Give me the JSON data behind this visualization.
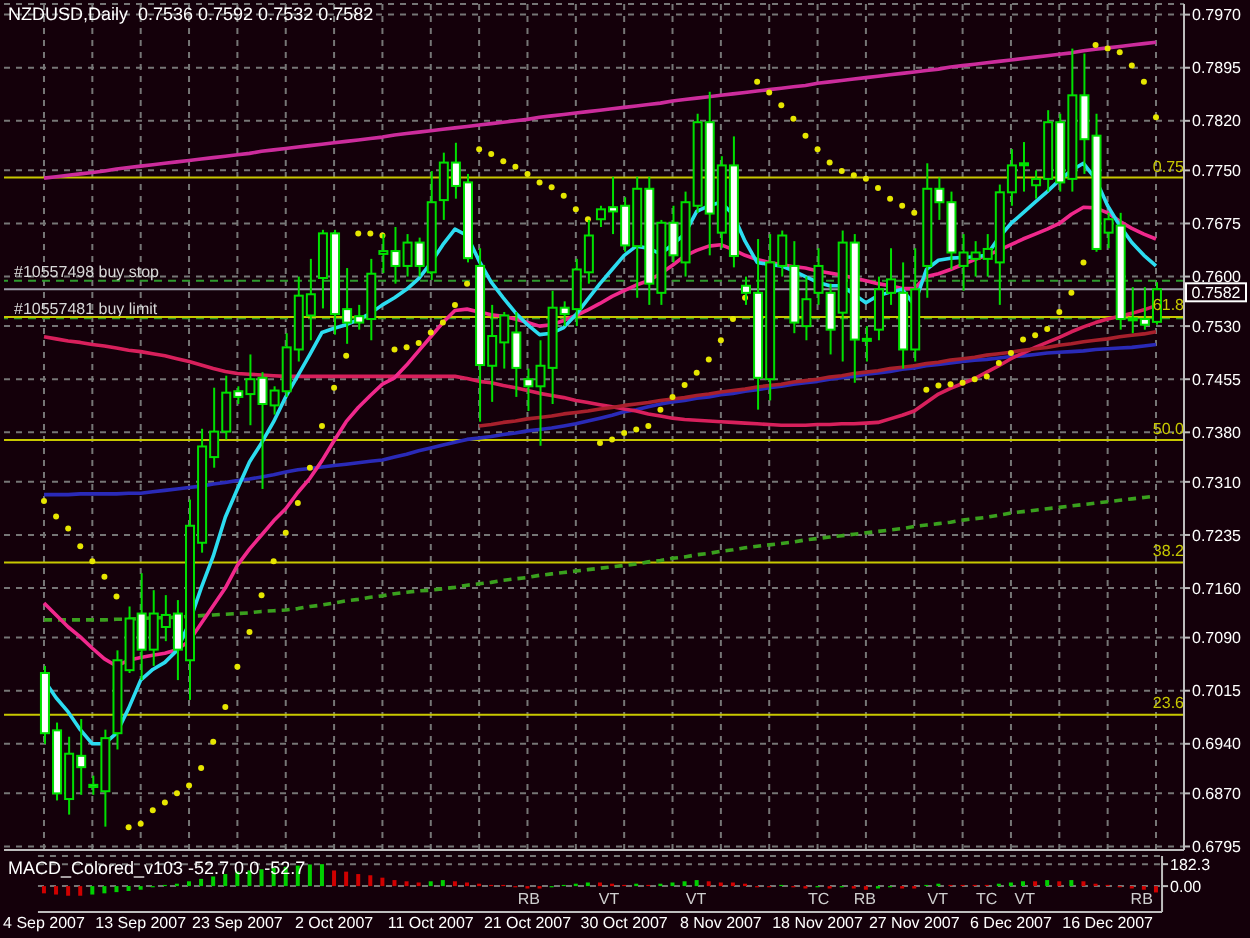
{
  "chart_data": [
    {
      "type": "candlestick",
      "title": "NZDUSD,Daily  0.7536 0.7592 0.7532 0.7582",
      "categories": [
        "4 Sep 2007",
        null,
        null,
        null,
        null,
        null,
        null,
        null,
        "13 Sep 2007",
        null,
        null,
        null,
        null,
        null,
        null,
        null,
        "23 Sep 2007",
        null,
        null,
        null,
        null,
        null,
        null,
        null,
        "2 Oct 2007",
        null,
        null,
        null,
        null,
        null,
        null,
        null,
        "11 Oct 2007",
        null,
        null,
        null,
        null,
        null,
        null,
        null,
        "21 Oct 2007",
        null,
        null,
        null,
        null,
        null,
        null,
        null,
        "30 Oct 2007",
        null,
        null,
        null,
        null,
        null,
        null,
        null,
        "8 Nov 2007",
        null,
        null,
        null,
        null,
        null,
        null,
        null,
        "18 Nov 2007",
        null,
        null,
        null,
        null,
        null,
        null,
        null,
        "27 Nov 2007",
        null,
        null,
        null,
        null,
        null,
        null,
        null,
        "6 Dec 2007",
        null,
        null,
        null,
        null,
        null,
        null,
        null,
        "16 Dec 2007",
        null,
        null,
        null,
        null
      ],
      "ohlc": [
        [
          0.704,
          0.705,
          0.694,
          0.6955
        ],
        [
          0.6959,
          0.697,
          0.686,
          0.687
        ],
        [
          0.6862,
          0.695,
          0.684,
          0.6926
        ],
        [
          0.6923,
          0.6975,
          0.6868,
          0.6907
        ],
        [
          0.6882,
          0.6895,
          0.6868,
          0.6879
        ],
        [
          0.6873,
          0.696,
          0.6823,
          0.6948
        ],
        [
          0.6955,
          0.7072,
          0.6932,
          0.7058
        ],
        [
          0.7044,
          0.7134,
          0.704,
          0.7117
        ],
        [
          0.7124,
          0.7181,
          0.703,
          0.7073
        ],
        [
          0.7073,
          0.7157,
          0.705,
          0.7124
        ],
        [
          0.7105,
          0.715,
          0.7085,
          0.7122
        ],
        [
          0.7124,
          0.7143,
          0.703,
          0.7073
        ],
        [
          0.7058,
          0.7285,
          0.7002,
          0.7248
        ],
        [
          0.7224,
          0.7385,
          0.721,
          0.736
        ],
        [
          0.7345,
          0.7443,
          0.733,
          0.7381
        ],
        [
          0.7381,
          0.746,
          0.737,
          0.7436
        ],
        [
          0.7438,
          0.7445,
          0.742,
          0.743
        ],
        [
          0.7434,
          0.749,
          0.739,
          0.7455
        ],
        [
          0.7457,
          0.7465,
          0.73,
          0.742
        ],
        [
          0.7418,
          0.7445,
          0.7405,
          0.7439
        ],
        [
          0.7438,
          0.752,
          0.743,
          0.75
        ],
        [
          0.7497,
          0.76,
          0.748,
          0.7573
        ],
        [
          0.7545,
          0.7625,
          0.751,
          0.7575
        ],
        [
          0.7598,
          0.7666,
          0.7555,
          0.7661
        ],
        [
          0.7661,
          0.7666,
          0.7518,
          0.7547
        ],
        [
          0.7554,
          0.7612,
          0.7505,
          0.7535
        ],
        [
          0.7544,
          0.756,
          0.7525,
          0.7535
        ],
        [
          0.754,
          0.7625,
          0.751,
          0.7604
        ],
        [
          0.7632,
          0.766,
          0.7605,
          0.7636
        ],
        [
          0.7636,
          0.767,
          0.759,
          0.7615
        ],
        [
          0.7615,
          0.766,
          0.76,
          0.7648
        ],
        [
          0.7648,
          0.7655,
          0.76,
          0.7615
        ],
        [
          0.7606,
          0.7749,
          0.7595,
          0.7705
        ],
        [
          0.7708,
          0.7775,
          0.768,
          0.7761
        ],
        [
          0.7761,
          0.7789,
          0.771,
          0.7728
        ],
        [
          0.7733,
          0.7745,
          0.762,
          0.7626
        ],
        [
          0.7615,
          0.764,
          0.7395,
          0.7475
        ],
        [
          0.7474,
          0.756,
          0.7423,
          0.7516
        ],
        [
          0.7507,
          0.755,
          0.747,
          0.7545
        ],
        [
          0.7521,
          0.755,
          0.743,
          0.7471
        ],
        [
          0.7455,
          0.747,
          0.741,
          0.7445
        ],
        [
          0.7445,
          0.751,
          0.7361,
          0.7474
        ],
        [
          0.7471,
          0.758,
          0.742,
          0.7556
        ],
        [
          0.7556,
          0.7565,
          0.753,
          0.7547
        ],
        [
          0.7554,
          0.7625,
          0.753,
          0.761
        ],
        [
          0.7606,
          0.768,
          0.759,
          0.7658
        ],
        [
          0.7681,
          0.77,
          0.767,
          0.7695
        ],
        [
          0.7698,
          0.7741,
          0.766,
          0.7692
        ],
        [
          0.77,
          0.7712,
          0.7635,
          0.7644
        ],
        [
          0.7643,
          0.7741,
          0.757,
          0.7724
        ],
        [
          0.7724,
          0.7741,
          0.756,
          0.759
        ],
        [
          0.7577,
          0.768,
          0.756,
          0.7676
        ],
        [
          0.7676,
          0.77,
          0.762,
          0.763
        ],
        [
          0.762,
          0.772,
          0.76,
          0.7705
        ],
        [
          0.77,
          0.783,
          0.769,
          0.7818
        ],
        [
          0.7818,
          0.7861,
          0.763,
          0.7689
        ],
        [
          0.7662,
          0.777,
          0.764,
          0.7757
        ],
        [
          0.7757,
          0.7798,
          0.7613,
          0.7629
        ],
        [
          0.7587,
          0.76,
          0.756,
          0.7577
        ],
        [
          0.7577,
          0.7653,
          0.7412,
          0.7457
        ],
        [
          0.7455,
          0.766,
          0.7425,
          0.762
        ],
        [
          0.7615,
          0.7665,
          0.76,
          0.7658
        ],
        [
          0.7615,
          0.765,
          0.752,
          0.7535
        ],
        [
          0.753,
          0.76,
          0.751,
          0.7568
        ],
        [
          0.7577,
          0.764,
          0.756,
          0.7615
        ],
        [
          0.7577,
          0.759,
          0.749,
          0.7525
        ],
        [
          0.7549,
          0.7665,
          0.748,
          0.7648
        ],
        [
          0.7648,
          0.766,
          0.745,
          0.7511
        ],
        [
          0.7512,
          0.753,
          0.748,
          0.7511
        ],
        [
          0.7525,
          0.76,
          0.751,
          0.7582
        ],
        [
          0.7577,
          0.764,
          0.756,
          0.7596
        ],
        [
          0.7577,
          0.762,
          0.747,
          0.7497
        ],
        [
          0.7497,
          0.764,
          0.748,
          0.7582
        ],
        [
          0.7615,
          0.776,
          0.757,
          0.7724
        ],
        [
          0.7724,
          0.774,
          0.768,
          0.7705
        ],
        [
          0.7705,
          0.772,
          0.761,
          0.7634
        ],
        [
          0.7615,
          0.766,
          0.758,
          0.7634
        ],
        [
          0.7625,
          0.765,
          0.76,
          0.7634
        ],
        [
          0.7625,
          0.766,
          0.76,
          0.7639
        ],
        [
          0.762,
          0.773,
          0.756,
          0.7719
        ],
        [
          0.7719,
          0.778,
          0.77,
          0.7757
        ],
        [
          0.776,
          0.779,
          0.772,
          0.7759
        ],
        [
          0.7729,
          0.775,
          0.771,
          0.7738
        ],
        [
          0.7738,
          0.7835,
          0.772,
          0.7818
        ],
        [
          0.7818,
          0.783,
          0.772,
          0.7733
        ],
        [
          0.7738,
          0.7922,
          0.772,
          0.7856
        ],
        [
          0.7856,
          0.7915,
          0.7745,
          0.7794
        ],
        [
          0.7799,
          0.783,
          0.7635,
          0.7639
        ],
        [
          0.7662,
          0.769,
          0.764,
          0.7681
        ],
        [
          0.7672,
          0.769,
          0.7525,
          0.754
        ],
        [
          0.7541,
          0.7585,
          0.752,
          0.754
        ],
        [
          0.754,
          0.7585,
          0.7525,
          0.7532
        ],
        [
          0.7536,
          0.7592,
          0.7532,
          0.7582
        ]
      ],
      "series": [
        {
          "type": "line",
          "color": "#3aa01e",
          "line_style": "dashed",
          "values": [
            0.7115,
            0.7115,
            0.7115,
            0.7115,
            0.7115,
            0.7115,
            0.7116,
            0.7116,
            0.7117,
            0.7118,
            0.7118,
            0.7119,
            0.712,
            0.7121,
            0.7122,
            0.7123,
            0.7124,
            0.7125,
            0.7127,
            0.7128,
            0.7129,
            0.7131,
            0.7134,
            0.7136,
            0.7139,
            0.7142,
            0.7144,
            0.7147,
            0.7149,
            0.7152,
            0.7154,
            0.7156,
            0.7157,
            0.7159,
            0.7161,
            0.7164,
            0.7166,
            0.7168,
            0.7171,
            0.7173,
            0.7175,
            0.7178,
            0.718,
            0.7182,
            0.7184,
            0.7186,
            0.7188,
            0.719,
            0.7192,
            0.7194,
            0.7197,
            0.7199,
            0.7202,
            0.7204,
            0.7207,
            0.7209,
            0.7212,
            0.7214,
            0.7217,
            0.7219,
            0.7221,
            0.7223,
            0.7225,
            0.7228,
            0.723,
            0.7232,
            0.7234,
            0.7236,
            0.7238,
            0.724,
            0.7242,
            0.7244,
            0.7247,
            0.7249,
            0.7251,
            0.7253,
            0.7256,
            0.7258,
            0.726,
            0.7263,
            0.7266,
            0.7268,
            0.727,
            0.7272,
            0.7274,
            0.7276,
            0.7278,
            0.728,
            0.7282,
            0.7284,
            0.7286,
            0.7288,
            0.729
          ]
        },
        {
          "type": "line",
          "color": "#2a2ab8",
          "values": [
            0.7292,
            0.7292,
            0.7292,
            0.7293,
            0.7293,
            0.7293,
            0.7293,
            0.7294,
            0.7294,
            0.7296,
            0.7298,
            0.73,
            0.7302,
            0.7304,
            0.7307,
            0.7309,
            0.7312,
            0.7314,
            0.7317,
            0.732,
            0.7324,
            0.7327,
            0.7329,
            0.7331,
            0.7333,
            0.7335,
            0.7337,
            0.7339,
            0.7341,
            0.7345,
            0.7349,
            0.7354,
            0.7358,
            0.7362,
            0.7366,
            0.737,
            0.7372,
            0.7374,
            0.7377,
            0.7379,
            0.7382,
            0.7384,
            0.7386,
            0.7389,
            0.7392,
            0.7396,
            0.74,
            0.7404,
            0.7409,
            0.7412,
            0.7416,
            0.742,
            0.7423,
            0.7425,
            0.7428,
            0.743,
            0.7433,
            0.7435,
            0.7438,
            0.744,
            0.7443,
            0.7445,
            0.7448,
            0.745,
            0.7452,
            0.7455,
            0.7457,
            0.7459,
            0.7462,
            0.7464,
            0.7466,
            0.7469,
            0.7471,
            0.7474,
            0.7476,
            0.7478,
            0.748,
            0.7482,
            0.7483,
            0.7485,
            0.7487,
            0.7488,
            0.749,
            0.7492,
            0.7493,
            0.7494,
            0.7495,
            0.7497,
            0.7498,
            0.7499,
            0.75,
            0.7502,
            0.7504
          ]
        },
        {
          "type": "line",
          "color": "#d8205c",
          "values": [
            0.7515,
            0.7512,
            0.7509,
            0.7507,
            0.7504,
            0.7502,
            0.7499,
            0.7496,
            0.7494,
            0.7491,
            0.7488,
            0.7484,
            0.748,
            0.7475,
            0.747,
            0.7466,
            0.7463,
            0.7462,
            0.7461,
            0.746,
            0.7459,
            0.7459,
            0.7459,
            0.7459,
            0.7459,
            0.7459,
            0.7459,
            0.7459,
            0.7459,
            0.7459,
            0.7459,
            0.7459,
            0.7459,
            0.7459,
            0.7459,
            0.7456,
            0.7452,
            0.745,
            0.7446,
            0.7443,
            0.7439,
            0.7435,
            0.7432,
            0.7429,
            0.7425,
            0.7422,
            0.7419,
            0.7416,
            0.7413,
            0.741,
            0.7406,
            0.7403,
            0.74,
            0.7398,
            0.7397,
            0.7396,
            0.7395,
            0.7394,
            0.7393,
            0.7392,
            0.7391,
            0.739,
            0.739,
            0.739,
            0.7391,
            0.7391,
            0.7392,
            0.7392,
            0.7393,
            0.7394,
            0.7399,
            0.7404,
            0.741,
            0.7422,
            0.7434,
            0.7442,
            0.7449,
            0.7456,
            0.7465,
            0.7474,
            0.7484,
            0.7492,
            0.75,
            0.7507,
            0.7514,
            0.7522,
            0.7529,
            0.7535,
            0.754,
            0.7544,
            0.7548,
            0.7553,
            0.7559
          ]
        },
        {
          "type": "line",
          "color": "#f0288c",
          "values": [
            0.7139,
            0.7122,
            0.7105,
            0.7091,
            0.7075,
            0.706,
            0.705,
            0.7058,
            0.7062,
            0.7065,
            0.7068,
            0.7073,
            0.7085,
            0.711,
            0.7135,
            0.716,
            0.7192,
            0.7215,
            0.7235,
            0.7255,
            0.7272,
            0.7295,
            0.7315,
            0.734,
            0.7368,
            0.7395,
            0.7415,
            0.7432,
            0.7448,
            0.7457,
            0.7475,
            0.7495,
            0.7515,
            0.7535,
            0.7552,
            0.7554,
            0.755,
            0.7546,
            0.7544,
            0.754,
            0.7535,
            0.753,
            0.7532,
            0.7538,
            0.7545,
            0.7553,
            0.7562,
            0.7572,
            0.758,
            0.7588,
            0.7594,
            0.7604,
            0.7616,
            0.7629,
            0.7637,
            0.7643,
            0.7645,
            0.7638,
            0.763,
            0.7624,
            0.762,
            0.7617,
            0.7614,
            0.7612,
            0.7608,
            0.7605,
            0.7602,
            0.7598,
            0.7594,
            0.759,
            0.7587,
            0.7583,
            0.7583,
            0.76,
            0.7604,
            0.761,
            0.7617,
            0.7624,
            0.763,
            0.7637,
            0.7645,
            0.7653,
            0.766,
            0.7667,
            0.7675,
            0.7688,
            0.7698,
            0.7697,
            0.769,
            0.7678,
            0.7668,
            0.766,
            0.7653
          ]
        },
        {
          "type": "line",
          "color": "#2cdcf0",
          "values": [
            0.703,
            0.7005,
            0.6985,
            0.696,
            0.694,
            0.694,
            0.6955,
            0.699,
            0.703,
            0.7045,
            0.7055,
            0.7072,
            0.711,
            0.716,
            0.7205,
            0.726,
            0.73,
            0.7338,
            0.7365,
            0.7395,
            0.743,
            0.746,
            0.749,
            0.7521,
            0.7527,
            0.7532,
            0.7539,
            0.7548,
            0.756,
            0.757,
            0.7582,
            0.7597,
            0.7619,
            0.7645,
            0.7667,
            0.7658,
            0.7622,
            0.7592,
            0.757,
            0.7549,
            0.7532,
            0.7518,
            0.752,
            0.7528,
            0.7546,
            0.7568,
            0.759,
            0.761,
            0.763,
            0.7643,
            0.764,
            0.7632,
            0.7645,
            0.766,
            0.7692,
            0.77,
            0.7705,
            0.7688,
            0.765,
            0.762,
            0.7617,
            0.7615,
            0.7608,
            0.76,
            0.7592,
            0.7587,
            0.7587,
            0.7575,
            0.7563,
            0.7573,
            0.7578,
            0.7582,
            0.756,
            0.761,
            0.7623,
            0.7626,
            0.7627,
            0.7628,
            0.763,
            0.7655,
            0.7675,
            0.769,
            0.7705,
            0.772,
            0.7736,
            0.775,
            0.776,
            0.7738,
            0.77,
            0.7672,
            0.7648,
            0.763,
            0.7615
          ]
        },
        {
          "type": "line",
          "color": "#cc2c9c",
          "values": [
            0.7739,
            0.7741,
            0.7743,
            0.7745,
            0.7747,
            0.7749,
            0.7752,
            0.7754,
            0.7756,
            0.7758,
            0.776,
            0.7762,
            0.7764,
            0.7766,
            0.7768,
            0.777,
            0.7772,
            0.7774,
            0.7777,
            0.7779,
            0.7781,
            0.7783,
            0.7785,
            0.7787,
            0.7789,
            0.7791,
            0.7793,
            0.7795,
            0.7797,
            0.78,
            0.7802,
            0.7804,
            0.7806,
            0.7808,
            0.781,
            0.7812,
            0.7814,
            0.7816,
            0.7818,
            0.782,
            0.7822,
            0.7825,
            0.7827,
            0.7829,
            0.7831,
            0.7833,
            0.7835,
            0.7837,
            0.7839,
            0.7841,
            0.7843,
            0.7845,
            0.7848,
            0.785,
            0.7852,
            0.7854,
            0.7856,
            0.7858,
            0.786,
            0.7862,
            0.7864,
            0.7866,
            0.7868,
            0.787,
            0.7873,
            0.7875,
            0.7877,
            0.7879,
            0.7881,
            0.7883,
            0.7885,
            0.7887,
            0.7889,
            0.7891,
            0.7893,
            0.7896,
            0.7898,
            0.79,
            0.7902,
            0.7904,
            0.7906,
            0.7908,
            0.791,
            0.7912,
            0.7914,
            0.7916,
            0.7919,
            0.7921,
            0.7923,
            0.7925,
            0.7927,
            0.7929,
            0.7931
          ]
        },
        {
          "type": "line",
          "color": "#a8202c",
          "values": [
            null,
            null,
            null,
            null,
            null,
            null,
            null,
            null,
            null,
            null,
            null,
            null,
            null,
            null,
            null,
            null,
            null,
            null,
            null,
            null,
            null,
            null,
            null,
            null,
            null,
            null,
            null,
            null,
            null,
            null,
            null,
            null,
            null,
            null,
            null,
            null,
            0.7389,
            0.7391,
            0.7394,
            0.7396,
            0.7399,
            0.7401,
            0.7403,
            0.7406,
            0.7408,
            0.741,
            0.7413,
            0.7415,
            0.7418,
            0.742,
            0.7422,
            0.7425,
            0.7427,
            0.7429,
            0.7432,
            0.7434,
            0.7437,
            0.7439,
            0.7441,
            0.7444,
            0.7446,
            0.7448,
            0.7451,
            0.7453,
            0.7455,
            0.7458,
            0.746,
            0.7463,
            0.7465,
            0.7467,
            0.747,
            0.7472,
            0.7474,
            0.7477,
            0.7479,
            0.7482,
            0.7484,
            0.7486,
            0.7489,
            0.7491,
            0.7493,
            0.7496,
            0.7498,
            0.75,
            0.7503,
            0.7505,
            0.7508,
            0.751,
            0.7512,
            0.7515,
            0.7517,
            0.7519,
            0.7522
          ]
        },
        {
          "type": "scatter",
          "color": "#e6e600",
          "marker": "circle",
          "values": [
            0.7283,
            0.7261,
            0.7244,
            0.7219,
            0.7198,
            0.7176,
            0.7148,
            0.6822,
            0.6827,
            0.6846,
            0.6857,
            0.687,
            0.6881,
            0.6906,
            0.6943,
            0.6992,
            0.7049,
            0.7098,
            0.715,
            0.7198,
            0.7238,
            0.728,
            0.733,
            0.7389,
            0.7443,
            0.7488,
            0.7661,
            0.7661,
            0.7658,
            0.7497,
            0.75,
            0.7506,
            0.7521,
            0.7535,
            0.756,
            0.759,
            0.778,
            0.7773,
            0.7763,
            0.7755,
            0.7745,
            0.7733,
            0.7726,
            0.7714,
            0.7695,
            0.7681,
            0.7365,
            0.737,
            0.7379,
            0.7384,
            0.7389,
            0.7412,
            0.743,
            0.7447,
            0.7464,
            0.7483,
            0.751,
            0.754,
            0.757,
            0.7875,
            0.786,
            0.7842,
            0.7823,
            0.7799,
            0.778,
            0.7761,
            0.7749,
            0.7743,
            0.7738,
            0.7725,
            0.771,
            0.77,
            0.769,
            0.744,
            0.7446,
            0.7448,
            0.745,
            0.7455,
            0.7459,
            0.7478,
            0.7492,
            0.7511,
            0.7517,
            0.7526,
            0.755,
            0.7577,
            0.762,
            0.7927,
            0.7922,
            0.7917,
            0.7898,
            0.7875,
            0.7825
          ]
        }
      ],
      "ref_lines": [
        {
          "axis": "y",
          "value": 0.774,
          "color": "#c8c800"
        },
        {
          "axis": "y",
          "value": 0.7594,
          "label": "#10557498 buy stop",
          "color": "#2e9a2e",
          "line_style": "dashed"
        },
        {
          "axis": "y",
          "value": 0.7582,
          "label": "0.7582",
          "color": "#9a9aa8"
        },
        {
          "axis": "y",
          "value": 0.7541,
          "label": "#10557481 buy limit",
          "color": "#2e9a2e",
          "line_style": "dashed"
        },
        {
          "axis": "y",
          "value": 0.7543,
          "color": "#c8c800"
        },
        {
          "axis": "y",
          "value": 0.7369,
          "color": "#c8c800"
        },
        {
          "axis": "y",
          "value": 0.7196,
          "color": "#c8c800"
        },
        {
          "axis": "y",
          "value": 0.6981,
          "color": "#c8c800"
        }
      ],
      "annotations": [
        {
          "text": "0.75",
          "y": 0.774
        },
        {
          "text": "61.8",
          "y": 0.7543
        },
        {
          "text": "50.0",
          "y": 0.7369
        },
        {
          "text": "38.2",
          "y": 0.7196
        },
        {
          "text": "23.6",
          "y": 0.6981
        }
      ],
      "ylim": [
        0.679,
        0.7985
      ],
      "yticks": [
        {
          "value": 0.797,
          "label": "0.7970"
        },
        0.7895,
        {
          "value": 0.782,
          "label": "0.7820"
        },
        {
          "value": 0.775,
          "label": "0.7750"
        },
        0.7675,
        {
          "value": 0.76,
          "label": "0.7600"
        },
        {
          "value": 0.753,
          "label": "0.7530"
        },
        0.7455,
        {
          "value": 0.738,
          "label": "0.7380"
        },
        {
          "value": 0.731,
          "label": "0.7310"
        },
        0.7235,
        {
          "value": 0.716,
          "label": "0.7160"
        },
        {
          "value": 0.709,
          "label": "0.7090"
        },
        0.7015,
        {
          "value": 0.694,
          "label": "0.6940"
        },
        {
          "value": 0.687,
          "label": "0.6870"
        },
        0.6795
      ],
      "grid": true
    },
    {
      "type": "bar",
      "title": "MACD_Colored_v103 -52.7 0.0 -52.7",
      "categories": [
        null,
        null,
        null,
        null,
        null,
        null,
        null,
        null,
        null,
        null,
        null,
        null,
        null,
        null,
        null,
        null,
        null,
        null,
        null,
        null,
        null,
        null,
        null,
        null,
        null,
        null,
        null,
        null,
        null,
        null,
        null,
        null,
        null,
        null,
        null,
        null,
        null,
        null,
        null,
        null,
        null,
        null,
        null,
        null,
        null,
        null,
        null,
        null,
        null,
        null,
        null,
        null,
        null,
        null,
        null,
        null,
        null,
        null,
        null,
        null,
        null,
        null,
        null,
        null,
        null,
        null,
        null,
        null,
        null,
        null,
        null,
        null,
        null,
        null,
        null,
        null,
        null,
        null,
        null,
        null,
        null,
        null,
        null,
        null,
        null,
        null,
        null,
        null,
        null,
        null,
        null,
        null,
        null
      ],
      "values": [
        -60,
        -70,
        -80,
        -80,
        -70,
        -60,
        -50,
        -40,
        -30,
        -10,
        10,
        20,
        40,
        60,
        80,
        100,
        120,
        130,
        140,
        150,
        160,
        170,
        180,
        182.3,
        130,
        120,
        100,
        90,
        70,
        50,
        40,
        30,
        40,
        50,
        40,
        30,
        20,
        10,
        10,
        -10,
        -20,
        -20,
        -10,
        10,
        20,
        30,
        30,
        20,
        10,
        20,
        10,
        20,
        30,
        40,
        50,
        40,
        30,
        30,
        20,
        -10,
        -10,
        10,
        -10,
        -20,
        -10,
        -20,
        -10,
        -20,
        -30,
        -20,
        -10,
        -20,
        -20,
        10,
        20,
        10,
        10,
        10,
        10,
        20,
        30,
        40,
        40,
        50,
        40,
        50,
        40,
        20,
        10,
        -10,
        -20,
        -30,
        -52.7
      ],
      "colors": [
        "#d00000",
        "#d00000",
        "#d00000",
        "#d00000",
        "#00d000",
        "#00d000",
        "#00d000",
        "#00d000",
        "#00d000",
        "#00d000",
        "#00d000",
        "#00d000",
        "#00d000",
        "#00d000",
        "#00d000",
        "#00d000",
        "#00d000",
        "#00d000",
        "#00d000",
        "#00d000",
        "#00d000",
        "#00d000",
        "#00d000",
        "#00d000",
        "#d00000",
        "#d00000",
        "#d00000",
        "#d00000",
        "#d00000",
        "#d00000",
        "#d00000",
        "#d00000",
        "#00d000",
        "#00d000",
        "#d00000",
        "#d00000",
        "#d00000",
        "#d00000",
        "#d00000",
        "#d00000",
        "#d00000",
        "#d00000",
        "#00d000",
        "#00d000",
        "#00d000",
        "#00d000",
        "#d00000",
        "#d00000",
        "#d00000",
        "#00d000",
        "#d00000",
        "#00d000",
        "#00d000",
        "#00d000",
        "#00d000",
        "#d00000",
        "#d00000",
        "#d00000",
        "#d00000",
        "#d00000",
        "#d00000",
        "#00d000",
        "#d00000",
        "#d00000",
        "#00d000",
        "#d00000",
        "#00d000",
        "#d00000",
        "#d00000",
        "#00d000",
        "#00d000",
        "#d00000",
        "#d00000",
        "#00d000",
        "#00d000",
        "#d00000",
        "#d00000",
        "#d00000",
        "#d00000",
        "#00d000",
        "#00d000",
        "#00d000",
        "#d00000",
        "#00d000",
        "#d00000",
        "#00d000",
        "#d00000",
        "#d00000",
        "#d00000",
        "#d00000",
        "#d00000",
        "#d00000",
        "#d00000"
      ],
      "ylim": [
        -215,
        250
      ],
      "yticks": [
        182.3,
        {
          "value": 0,
          "label": "0.00"
        }
      ],
      "grid": "y",
      "tick_labels": "y",
      "annotations": [
        "RB",
        "VT",
        "VT",
        "TC",
        "RB",
        "VT",
        "TC",
        "VT",
        "RB"
      ]
    }
  ]
}
